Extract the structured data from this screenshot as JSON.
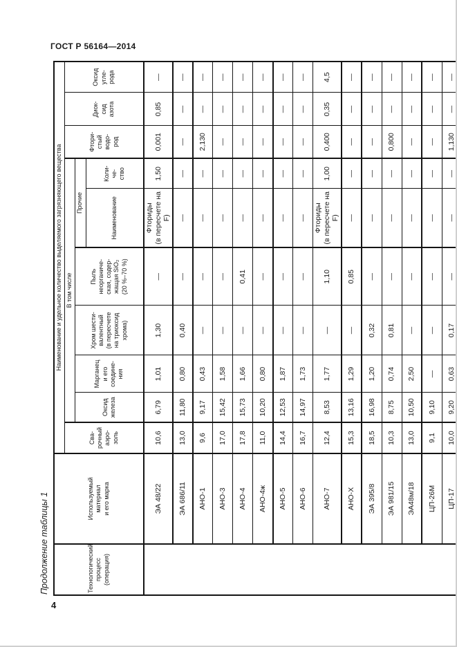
{
  "page": {
    "doc_header": "ГОСТ Р 56164—2014",
    "page_number": "4",
    "table_caption": "Продолжение таблицы 1"
  },
  "table": {
    "headers": {
      "process": "Технологический\nпроцесс\n(операция)",
      "material": "Используемый\nматериал\nи его марка",
      "pollutants": "Наименование и удельное количество выделяемого загрязняющего вещества",
      "aerosol": "Сва-\nрочный\nаэро-\nзоль",
      "including": "В том числе",
      "iron_oxide": "Оксид\nжелеза",
      "manganese": "Марганец\nи его\nсоедине-\nния",
      "chromium": "Хром шести-\nвалентный\n(в пересчете\nна триоксид\nхрома)",
      "dust": "Пыль\nнеорганиче-\nская, содер-\nжащая SiO₂\n(20 %–70 %)",
      "others": "Прочие",
      "others_name": "Наименование",
      "others_qty": "Коли-\nче-\nство",
      "hydrogen_fluoride": "Фтори-\nстый\nводо-\nрод",
      "nitrogen_dioxide": "Диок-\nсид\nазота",
      "carbon_oxide": "Оксид\nугле-\nрода"
    },
    "rows": [
      {
        "cells": [
          "ЭА 48/22",
          "10,6",
          "6,79",
          "1,01",
          "1,30",
          "—",
          "Фториды\n(в пересчете на F)",
          "1,50",
          "0,001",
          "0,85",
          "—"
        ],
        "group_end": true
      },
      {
        "cells": [
          "ЭА 686/11",
          "13,0",
          "11,80",
          "0,80",
          "0,40",
          "—",
          "—",
          "—",
          "—",
          "—",
          "—"
        ],
        "group_end": true
      },
      {
        "cells": [
          "АНО-1",
          "9,6",
          "9,17",
          "0,43",
          "—",
          "—",
          "—",
          "—",
          "2,130",
          "—",
          "—"
        ],
        "group_end": false
      },
      {
        "cells": [
          "АНО-3",
          "17,0",
          "15,42",
          "1,58",
          "—",
          "—",
          "—",
          "—",
          "—",
          "—",
          "—"
        ],
        "group_end": false
      },
      {
        "cells": [
          "АНО-4",
          "17,8",
          "15,73",
          "1,66",
          "—",
          "0,41",
          "—",
          "—",
          "—",
          "—",
          "—"
        ],
        "group_end": false
      },
      {
        "cells": [
          "АНО-4ж",
          "11,0",
          "10,20",
          "0,80",
          "—",
          "—",
          "—",
          "—",
          "—",
          "—",
          "—"
        ],
        "group_end": true
      },
      {
        "cells": [
          "АНО-5",
          "14,4",
          "12,53",
          "1,87",
          "—",
          "—",
          "—",
          "—",
          "—",
          "—",
          "—"
        ],
        "group_end": false
      },
      {
        "cells": [
          "АНО-6",
          "16,7",
          "14,97",
          "1,73",
          "—",
          "—",
          "—",
          "—",
          "—",
          "—",
          "—"
        ],
        "group_end": false
      },
      {
        "cells": [
          "АНО-7",
          "12,4",
          "8,53",
          "1,77",
          "—",
          "1,10",
          "Фториды\n(в пересчете на F)",
          "1,00",
          "0,400",
          "0,35",
          "4,5"
        ],
        "group_end": true
      },
      {
        "cells": [
          "АНО-Х",
          "15,3",
          "13,16",
          "1,29",
          "—",
          "0,85",
          "—",
          "—",
          "—",
          "—",
          "—"
        ],
        "group_end": true
      },
      {
        "cells": [
          "ЭА 395/8",
          "18,5",
          "16,98",
          "1,20",
          "0,32",
          "—",
          "—",
          "—",
          "—",
          "—",
          "—"
        ],
        "group_end": false
      },
      {
        "cells": [
          "ЭА 981/15",
          "10,3",
          "8,75",
          "0,74",
          "0,81",
          "—",
          "—",
          "—",
          "0,800",
          "—",
          "—"
        ],
        "group_end": false
      },
      {
        "cells": [
          "ЭА48м/18",
          "13,0",
          "10,50",
          "2,50",
          "—",
          "—",
          "—",
          "—",
          "—",
          "—",
          "—"
        ],
        "group_end": true
      },
      {
        "cells": [
          "ЦП-26М",
          "9,1",
          "9,10",
          "—",
          "—",
          "—",
          "—",
          "—",
          "—",
          "—",
          "—"
        ],
        "group_end": false
      },
      {
        "cells": [
          "ЦП-17",
          "10,0",
          "9,20",
          "0,63",
          "0,17",
          "—",
          "—",
          "—",
          "1,130",
          "—",
          "—"
        ],
        "group_end": false
      }
    ]
  }
}
